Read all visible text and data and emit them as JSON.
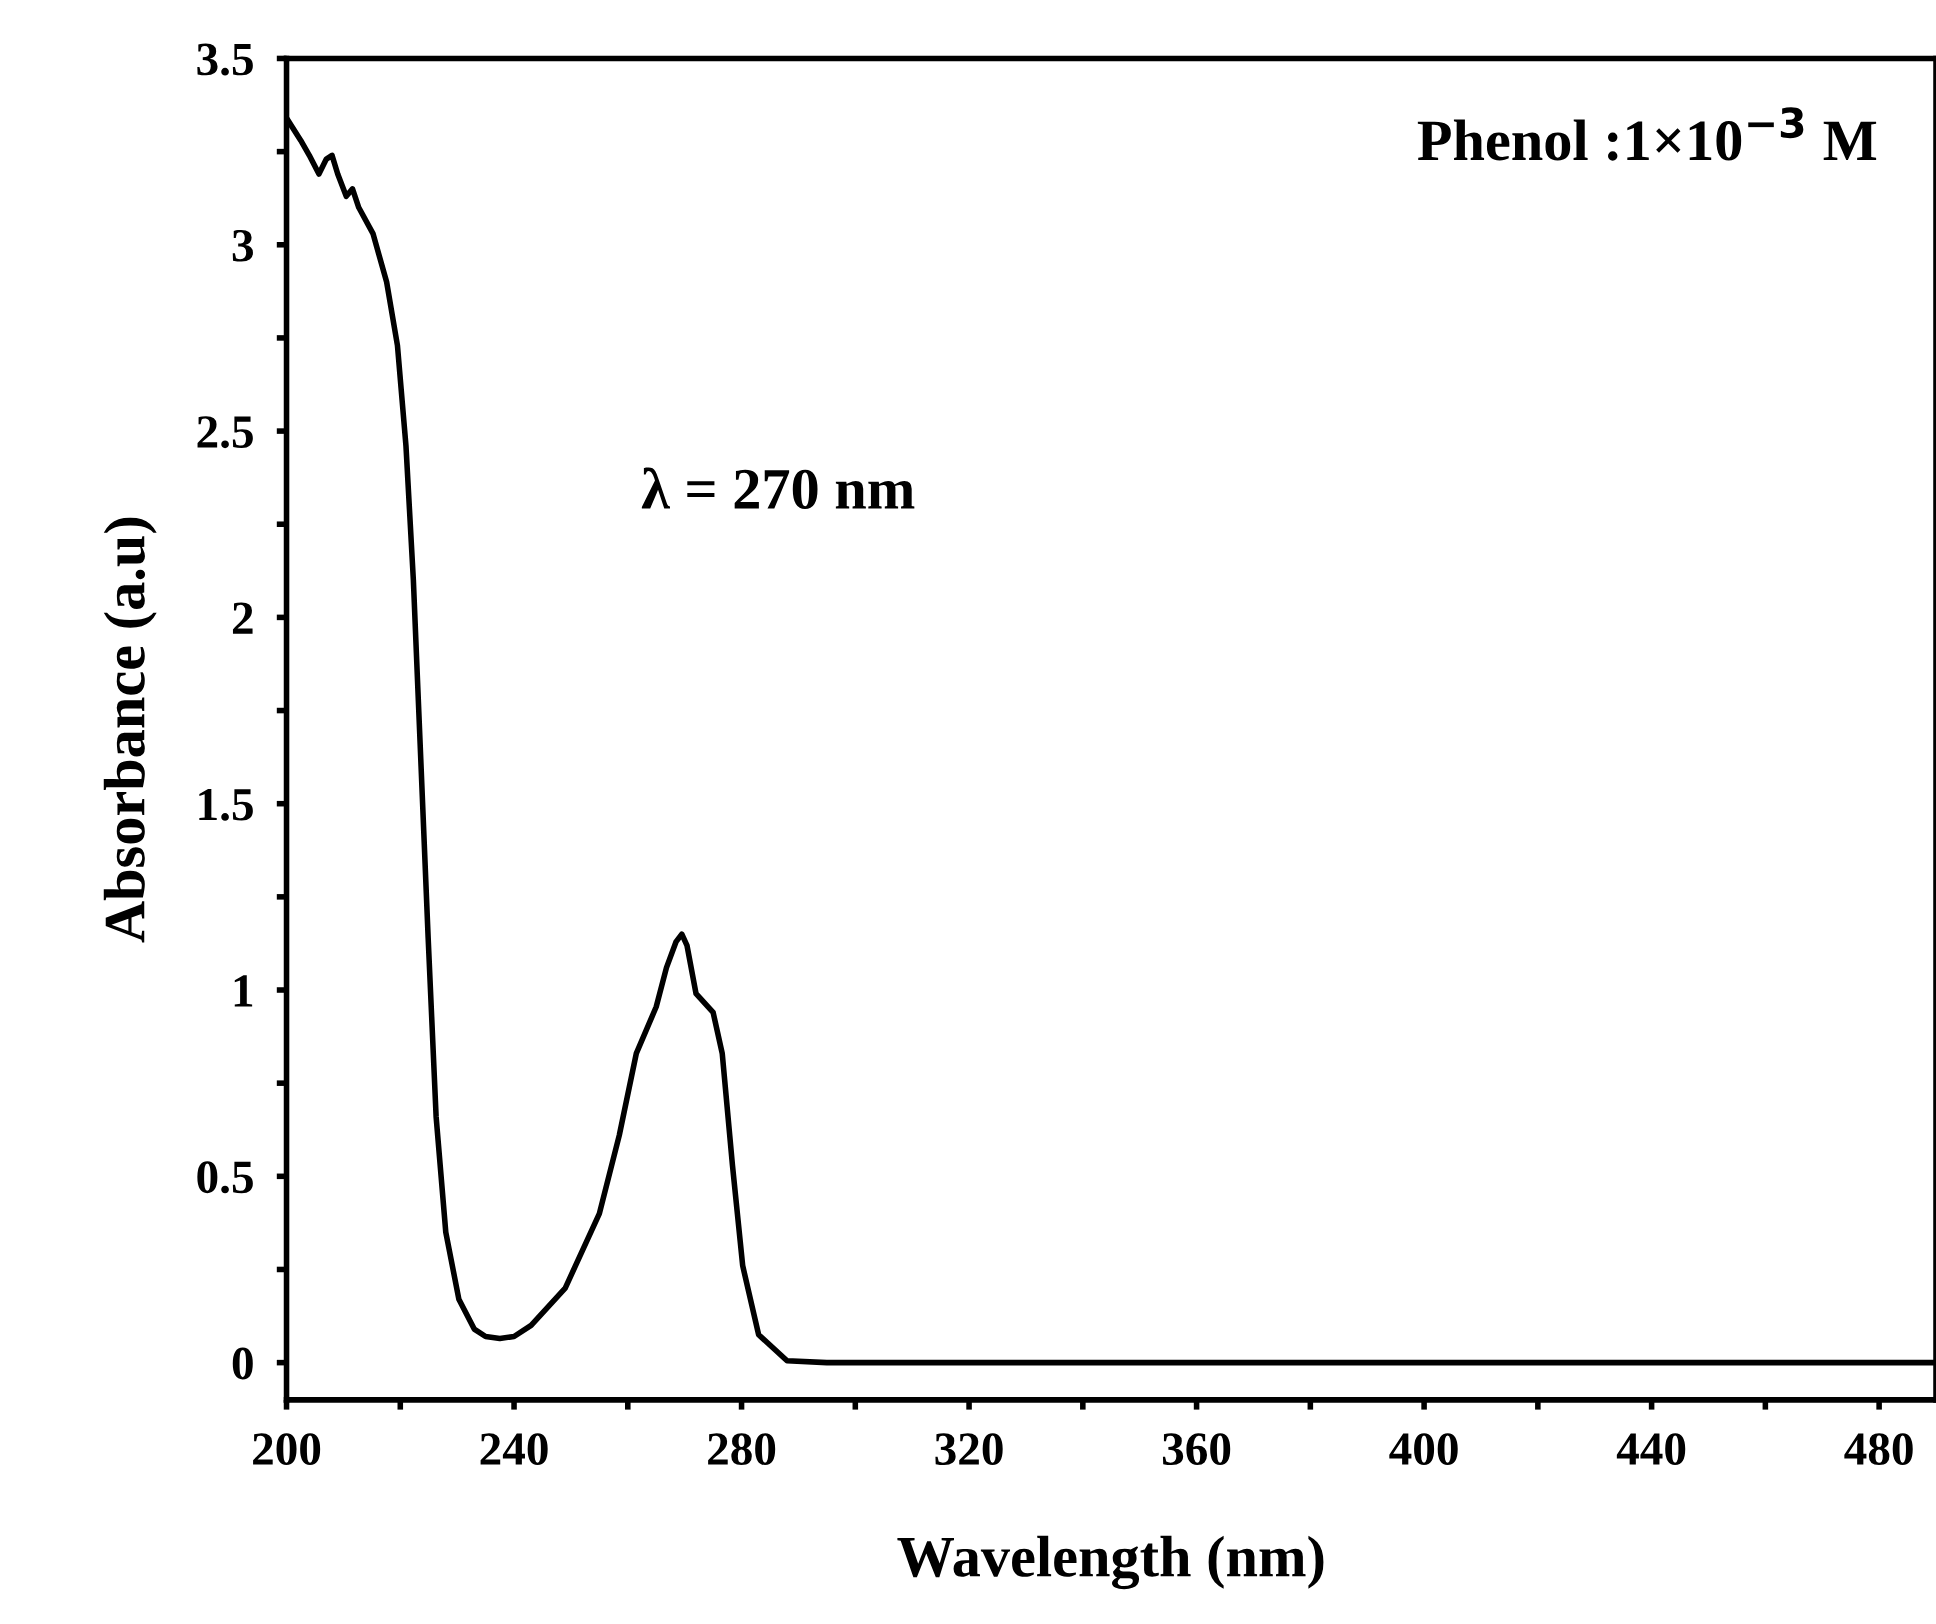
{
  "chart_data": {
    "type": "line",
    "xlabel": "Wavelength (nm)",
    "ylabel": "Absorbance (a.u)",
    "annotations": [
      "Phenol :1×10$^{−3}$ M",
      "λ = 270 nm"
    ],
    "series": [
      {
        "color": "#000000",
        "x": [
          200,
          202.5,
          204,
          205.7,
          207,
          208,
          209,
          210.5,
          211.6,
          212.7,
          215.2,
          217.6,
          219.5,
          221,
          222.3,
          223.6,
          224.9,
          226.3,
          228,
          230.3,
          233,
          235,
          237.5,
          240,
          243,
          249,
          255,
          258.5,
          261.5,
          265,
          266.8,
          268.5,
          269.5,
          270.4,
          272,
          275,
          276.6,
          278.4,
          280.2,
          283,
          288,
          295,
          320,
          360,
          400,
          440,
          490
        ],
        "values": [
          3.34,
          3.28,
          3.24,
          3.19,
          3.23,
          3.24,
          3.19,
          3.13,
          3.15,
          3.1,
          3.03,
          2.9,
          2.73,
          2.46,
          2.1,
          1.62,
          1.14,
          0.66,
          0.35,
          0.17,
          0.09,
          0.07,
          0.065,
          0.07,
          0.1,
          0.2,
          0.4,
          0.61,
          0.83,
          0.955,
          1.06,
          1.13,
          1.15,
          1.12,
          0.99,
          0.94,
          0.83,
          0.53,
          0.26,
          0.075,
          0.005,
          0,
          0,
          0,
          0,
          0,
          0
        ]
      }
    ],
    "xlim": [
      200,
      490
    ],
    "ylim": [
      -0.1,
      3.5
    ],
    "xticks": [
      200,
      {
        "value": 220,
        "label": null
      },
      240,
      {
        "value": 260,
        "label": null
      },
      280,
      {
        "value": 300,
        "label": null
      },
      320,
      {
        "value": 340,
        "label": null
      },
      360,
      {
        "value": 380,
        "label": null
      },
      400,
      {
        "value": 420,
        "label": null
      },
      440,
      {
        "value": 460,
        "label": null
      },
      480
    ],
    "yticks": [
      0,
      {
        "value": 0.25,
        "label": null
      },
      0.5,
      {
        "value": 0.75,
        "label": null
      },
      1,
      {
        "value": 1.25,
        "label": null
      },
      1.5,
      {
        "value": 1.75,
        "label": null
      },
      2,
      {
        "value": 2.25,
        "label": null
      },
      2.5,
      {
        "value": 2.75,
        "label": null
      },
      3,
      {
        "value": 3.25,
        "label": null
      },
      3.5
    ],
    "grid": false,
    "legend": false,
    "marker": "none",
    "line_style": "solid"
  }
}
